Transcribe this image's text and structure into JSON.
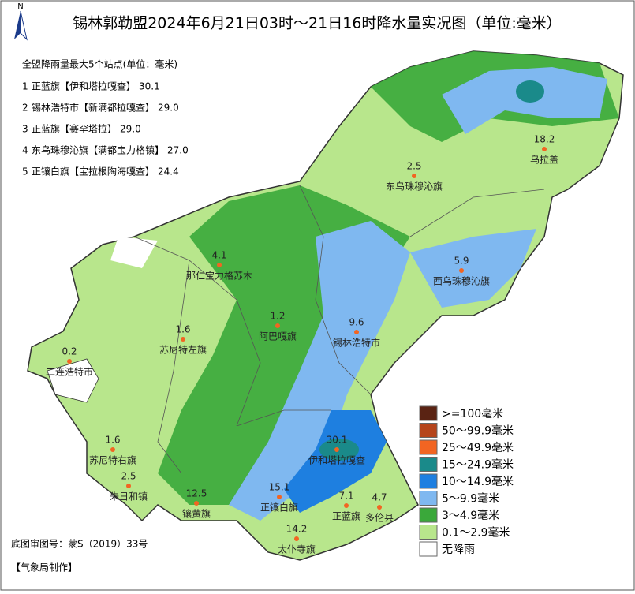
{
  "header": {
    "title": "锡林郭勒盟2024年6月21日03时～21日16时降水量实况图（单位:毫米）",
    "north": "N"
  },
  "top_list": {
    "heading": "全盟降雨量最大5个站点(单位：毫米)",
    "items": [
      {
        "rank": "1",
        "name": "正蓝旗【伊和塔拉嘎查】",
        "value": "30.1"
      },
      {
        "rank": "2",
        "name": "锡林浩特市【新满都拉嘎查】",
        "value": "29.0"
      },
      {
        "rank": "3",
        "name": "正蓝旗【赛罕塔拉】",
        "value": "29.0"
      },
      {
        "rank": "4",
        "name": "东乌珠穆沁旗【满都宝力格镇】",
        "value": "27.0"
      },
      {
        "rank": "5",
        "name": "正镶白旗【宝拉根陶海嘎查】",
        "value": "24.4"
      }
    ]
  },
  "stations": [
    {
      "name": "乌拉盖",
      "value": "18.2"
    },
    {
      "name": "东乌珠穆沁旗",
      "value": "2.5"
    },
    {
      "name": "西乌珠穆沁旗",
      "value": "5.9"
    },
    {
      "name": "那仁宝力格苏木",
      "value": "4.1"
    },
    {
      "name": "阿巴嘎旗",
      "value": "1.2"
    },
    {
      "name": "锡林浩特市",
      "value": "9.6"
    },
    {
      "name": "苏尼特左旗",
      "value": "1.6"
    },
    {
      "name": "二连浩特市",
      "value": "0.2"
    },
    {
      "name": "苏尼特右旗",
      "value": "1.6"
    },
    {
      "name": "朱日和镇",
      "value": "2.5"
    },
    {
      "name": "伊和塔拉嘎查",
      "value": "30.1"
    },
    {
      "name": "镶黄旗",
      "value": "12.5"
    },
    {
      "name": "正镶白旗",
      "value": "15.1"
    },
    {
      "name": "正蓝旗",
      "value": "7.1"
    },
    {
      "name": "多伦县",
      "value": "4.7"
    },
    {
      "name": "太仆寺旗",
      "value": "14.2"
    }
  ],
  "legend": [
    {
      "label": ">=100毫米",
      "color": "#5a2313"
    },
    {
      "label": "50～99.9毫米",
      "color": "#b5441b"
    },
    {
      "label": "25～49.9毫米",
      "color": "#f26522"
    },
    {
      "label": "15～24.9毫米",
      "color": "#1a8a8a"
    },
    {
      "label": "10～14.9毫米",
      "color": "#1e7fe0"
    },
    {
      "label": "5～9.9毫米",
      "color": "#7fb8f0"
    },
    {
      "label": "3～4.9毫米",
      "color": "#3aa83a"
    },
    {
      "label": "0.1～2.9毫米",
      "color": "#b8e68c"
    },
    {
      "label": "无降雨",
      "color": "#ffffff"
    }
  ],
  "footer": {
    "approval": "底图审图号：蒙S（2019）33号",
    "maker": "【气象局制作】"
  }
}
